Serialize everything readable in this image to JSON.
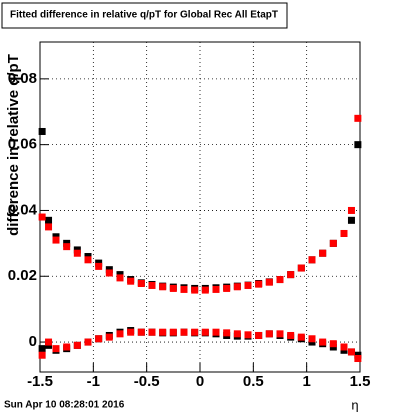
{
  "chart_data": {
    "type": "scatter",
    "title": "Fitted difference in relative q/pT for Global Rec All EtapT",
    "y_label": "difference in relative q/pT",
    "x_label": "η",
    "footer": "Sun Apr 10 08:28:01 2016",
    "x": [
      -1.48,
      -1.42,
      -1.35,
      -1.25,
      -1.15,
      -1.05,
      -0.95,
      -0.85,
      -0.75,
      -0.65,
      -0.55,
      -0.45,
      -0.35,
      -0.25,
      -0.15,
      -0.05,
      0.05,
      0.15,
      0.25,
      0.35,
      0.45,
      0.55,
      0.65,
      0.75,
      0.85,
      0.95,
      1.05,
      1.15,
      1.25,
      1.35,
      1.42,
      1.48
    ],
    "series": [
      {
        "color": "#000000",
        "values": [
          0.064,
          0.037,
          0.032,
          0.03,
          0.028,
          0.026,
          0.024,
          0.022,
          0.0205,
          0.019,
          0.018,
          0.0175,
          0.017,
          0.0167,
          0.0165,
          0.0163,
          0.0163,
          0.0165,
          0.0167,
          0.017,
          0.0173,
          0.0178,
          0.0183,
          0.019,
          0.0205,
          0.0225,
          0.025,
          0.027,
          0.03,
          0.033,
          0.037,
          0.06
        ]
      },
      {
        "color": "#000000",
        "values": [
          -0.002,
          -0.001,
          -0.0025,
          -0.002,
          -0.001,
          0.0,
          0.001,
          0.002,
          0.003,
          0.0035,
          0.003,
          0.003,
          0.0028,
          0.0028,
          0.003,
          0.0028,
          0.0028,
          0.0025,
          0.002,
          0.0018,
          0.0018,
          0.002,
          0.0025,
          0.002,
          0.0015,
          0.001,
          0.0,
          -0.0005,
          -0.0015,
          -0.0025,
          -0.003,
          -0.004
        ]
      },
      {
        "color": "#ff0000",
        "values": [
          0.038,
          0.035,
          0.031,
          0.029,
          0.027,
          0.025,
          0.023,
          0.021,
          0.0195,
          0.0185,
          0.0178,
          0.0172,
          0.0168,
          0.0163,
          0.016,
          0.0158,
          0.0158,
          0.016,
          0.0163,
          0.0168,
          0.0172,
          0.0176,
          0.0182,
          0.019,
          0.0205,
          0.0225,
          0.025,
          0.027,
          0.03,
          0.033,
          0.04,
          0.068
        ]
      },
      {
        "color": "#ff0000",
        "values": [
          -0.004,
          0.0,
          -0.002,
          -0.0015,
          -0.001,
          0.0,
          0.001,
          0.0015,
          0.0025,
          0.003,
          0.003,
          0.003,
          0.003,
          0.003,
          0.003,
          0.003,
          0.003,
          0.003,
          0.0028,
          0.0025,
          0.0022,
          0.002,
          0.0025,
          0.0025,
          0.002,
          0.0015,
          0.001,
          0.0,
          -0.0005,
          -0.0015,
          -0.003,
          -0.005
        ]
      }
    ],
    "xlim": [
      -1.5,
      1.5
    ],
    "xticks": [
      -1.5,
      -1,
      -0.5,
      0,
      0.5,
      1,
      1.5
    ],
    "ylim": [
      -0.0091,
      0.0912
    ],
    "yticks": [
      0,
      0.02,
      0.04,
      0.06,
      0.08
    ],
    "grid": true
  }
}
